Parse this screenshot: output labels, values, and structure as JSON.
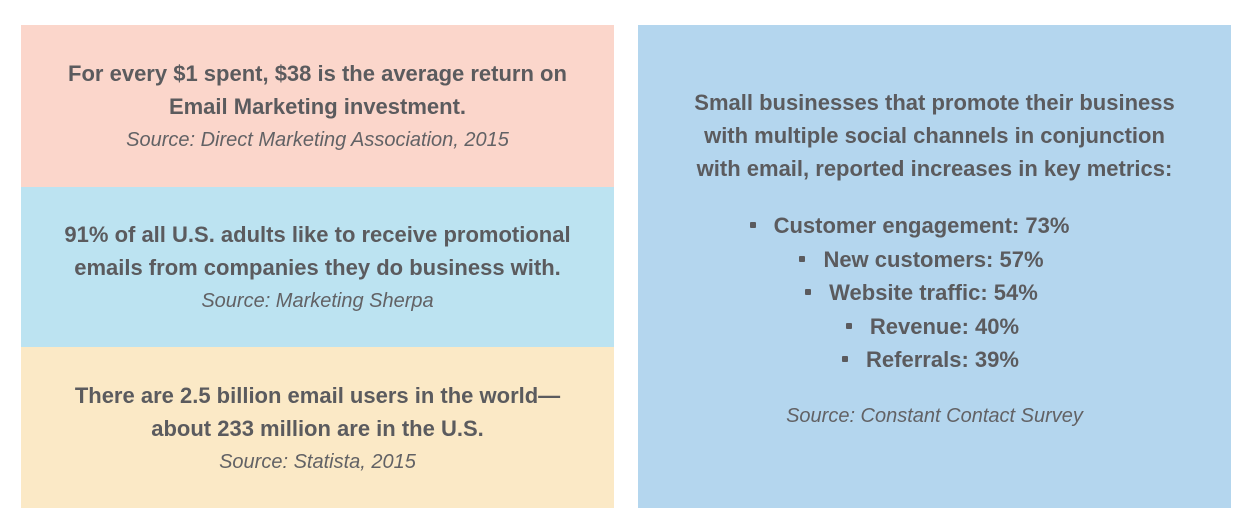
{
  "roi_card": {
    "stat_line1": "For every $1 spent, $38 is the average return on",
    "stat_line2": "Email Marketing investment.",
    "source": "Source: Direct Marketing Association, 2015",
    "color": "#fbd6cb"
  },
  "adults_card": {
    "stat_line1": "91% of all U.S. adults like to receive promotional",
    "stat_line2": "emails from companies they do business with.",
    "source": "Source: Marketing Sherpa",
    "color": "#bce3f1"
  },
  "users_card": {
    "stat_line1": "There are 2.5 billion email users in the world—",
    "stat_line2": "about 233 million are in the U.S.",
    "source": "Source: Statista, 2015",
    "color": "#fbe9c6"
  },
  "social_card": {
    "stat_line1": "Small businesses that promote their business",
    "stat_line2": "with multiple social channels in conjunction",
    "stat_line3": "with email, reported increases in key metrics:",
    "metrics": [
      "Customer engagement: 73%",
      "New customers: 57%",
      "Website traffic: 54%",
      "Revenue: 40%",
      "Referrals: 39%"
    ],
    "source": "Source: Constant Contact Survey",
    "color": "#b4d6ee"
  },
  "text_color": "#5b5b5e"
}
